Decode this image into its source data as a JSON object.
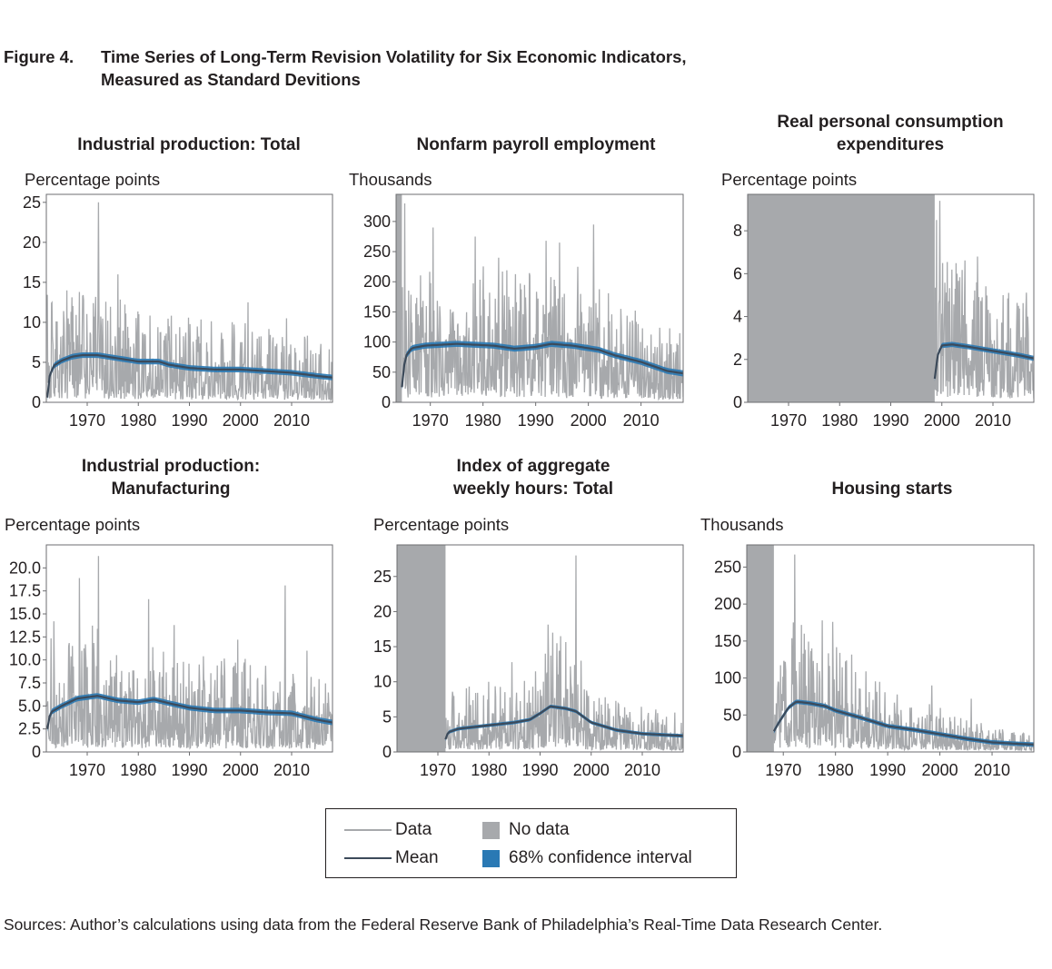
{
  "figure": {
    "number": "Figure 4.",
    "title_line1": "Time Series of Long-Term Revision Volatility for Six Economic Indicators,",
    "title_line2": "Measured as Standard Devitions"
  },
  "colors": {
    "data": "#a7a9ac",
    "mean": "#3c4a5a",
    "ci": "#2a79b4",
    "nodata": "#a7a9ac",
    "frame": "#6d6e71"
  },
  "chart_data": [
    {
      "type": "line",
      "title_lines": [
        "Industrial production: Total"
      ],
      "ylabel": "Percentage points",
      "xlim": [
        1962,
        2018
      ],
      "ylim": [
        0,
        26
      ],
      "yticks": [
        "0",
        "5",
        "10",
        "15",
        "20",
        "25"
      ],
      "ytick_values": [
        0,
        5,
        10,
        15,
        20,
        25
      ],
      "xticks": [
        "1970",
        "1980",
        "1990",
        "2000",
        "2010"
      ],
      "xtick_values": [
        1970,
        1980,
        1990,
        2000,
        2010
      ],
      "no_data": [],
      "data_start": 1962.2,
      "data_end": 2018,
      "series": [
        {
          "name": "Data",
          "style": "noisy",
          "base": [
            [
              1962,
              4.5
            ],
            [
              1970,
              4.8
            ],
            [
              1980,
              4.0
            ],
            [
              1990,
              3.6
            ],
            [
              2000,
              3.4
            ],
            [
              2010,
              2.9
            ],
            [
              2018,
              2.4
            ]
          ],
          "spikes": [
            [
              1972.2,
              25
            ],
            [
              1976,
              16
            ],
            [
              1966,
              14
            ],
            [
              1968.5,
              13.8
            ],
            [
              2001.5,
              12.5
            ],
            [
              2009,
              10.5
            ],
            [
              1986,
              9.5
            ],
            [
              1963,
              12.4
            ]
          ]
        },
        {
          "name": "Mean",
          "points": [
            [
              1962.2,
              0.6
            ],
            [
              1962.7,
              3.5
            ],
            [
              1963.5,
              4.6
            ],
            [
              1965,
              5.2
            ],
            [
              1967,
              5.7
            ],
            [
              1969,
              5.9
            ],
            [
              1972,
              5.9
            ],
            [
              1975,
              5.6
            ],
            [
              1980,
              5.1
            ],
            [
              1984,
              5.1
            ],
            [
              1986,
              4.7
            ],
            [
              1990,
              4.3
            ],
            [
              1995,
              4.1
            ],
            [
              2000,
              4.1
            ],
            [
              2005,
              3.9
            ],
            [
              2010,
              3.7
            ],
            [
              2015,
              3.3
            ],
            [
              2018,
              3.1
            ]
          ],
          "band": 0.35
        }
      ]
    },
    {
      "type": "line",
      "title_lines": [
        "Nonfarm payroll employment"
      ],
      "ylabel": "Thousands",
      "xlim": [
        1963.5,
        2018
      ],
      "ylim": [
        0,
        345
      ],
      "yticks": [
        "0",
        "50",
        "100",
        "150",
        "200",
        "250",
        "300"
      ],
      "ytick_values": [
        0,
        50,
        100,
        150,
        200,
        250,
        300
      ],
      "xticks": [
        "1970",
        "1980",
        "1990",
        "2000",
        "2010"
      ],
      "xtick_values": [
        1970,
        1980,
        1990,
        2000,
        2010
      ],
      "no_data": [
        [
          1963.5,
          1964.6
        ]
      ],
      "data_start": 1964.6,
      "data_end": 2018,
      "series": [
        {
          "name": "Data",
          "style": "noisy",
          "base": [
            [
              1964.6,
              80
            ],
            [
              1970,
              78
            ],
            [
              1980,
              76
            ],
            [
              1990,
              72
            ],
            [
              2000,
              68
            ],
            [
              2010,
              52
            ],
            [
              2018,
              40
            ]
          ],
          "spikes": [
            [
              1965.2,
              330
            ],
            [
              1970.5,
              290
            ],
            [
              1978.5,
              275
            ],
            [
              1992,
              268
            ],
            [
              1994.5,
              265
            ],
            [
              2001,
              295
            ],
            [
              1983,
              240
            ],
            [
              1998,
              225
            ]
          ]
        },
        {
          "name": "Mean",
          "points": [
            [
              1964.6,
              25
            ],
            [
              1965.2,
              75
            ],
            [
              1966.5,
              90
            ],
            [
              1969,
              94
            ],
            [
              1975,
              97
            ],
            [
              1982,
              94
            ],
            [
              1986,
              89
            ],
            [
              1990,
              92
            ],
            [
              1993,
              97
            ],
            [
              1997,
              94
            ],
            [
              2002,
              87
            ],
            [
              2005,
              78
            ],
            [
              2010,
              67
            ],
            [
              2015,
              52
            ],
            [
              2018,
              48
            ]
          ],
          "band": 5
        }
      ]
    },
    {
      "type": "line",
      "title_lines": [
        "Real personal consumption",
        "expenditures"
      ],
      "ylabel": "Percentage points",
      "xlim": [
        1962,
        2018
      ],
      "ylim": [
        0,
        9.7
      ],
      "yticks": [
        "0",
        "2",
        "4",
        "6",
        "8"
      ],
      "ytick_values": [
        0,
        2,
        4,
        6,
        8
      ],
      "xticks": [
        "1970",
        "1980",
        "1990",
        "2000",
        "2010"
      ],
      "xtick_values": [
        1970,
        1980,
        1990,
        2000,
        2010
      ],
      "no_data": [
        [
          1962,
          1998.6
        ]
      ],
      "data_start": 1998.6,
      "data_end": 2018,
      "series": [
        {
          "name": "Data",
          "style": "noisy",
          "base": [
            [
              1998.6,
              2.6
            ],
            [
              2005,
              2.3
            ],
            [
              2010,
              2.0
            ],
            [
              2018,
              1.7
            ]
          ],
          "spikes": [
            [
              1999.6,
              9.4
            ],
            [
              1999,
              8.5
            ],
            [
              2007,
              6.8
            ],
            [
              2012,
              5.0
            ],
            [
              2015,
              4.5
            ],
            [
              2003,
              6.0
            ]
          ]
        },
        {
          "name": "Mean",
          "points": [
            [
              1998.6,
              1.1
            ],
            [
              1999.2,
              2.2
            ],
            [
              2000,
              2.65
            ],
            [
              2002,
              2.7
            ],
            [
              2005,
              2.6
            ],
            [
              2010,
              2.4
            ],
            [
              2015,
              2.2
            ],
            [
              2018,
              2.05
            ]
          ],
          "band": 0.12
        }
      ]
    },
    {
      "type": "line",
      "title_lines": [
        "Industrial production:",
        "Manufacturing"
      ],
      "ylabel": "Percentage points",
      "xlim": [
        1962,
        2018
      ],
      "ylim": [
        0,
        22.5
      ],
      "yticks": [
        "0",
        "2.5",
        "5.0",
        "7.5",
        "10.0",
        "12.5",
        "15.0",
        "17.5",
        "20.0"
      ],
      "ytick_values": [
        0,
        2.5,
        5,
        7.5,
        10,
        12.5,
        15,
        17.5,
        20
      ],
      "xticks": [
        "1970",
        "1980",
        "1990",
        "2000",
        "2010"
      ],
      "xtick_values": [
        1970,
        1980,
        1990,
        2000,
        2010
      ],
      "no_data": [],
      "data_start": 1962.2,
      "data_end": 2018,
      "series": [
        {
          "name": "Data",
          "style": "noisy",
          "base": [
            [
              1962,
              4.2
            ],
            [
              1970,
              4.7
            ],
            [
              1980,
              4.2
            ],
            [
              1990,
              3.8
            ],
            [
              2000,
              3.6
            ],
            [
              2010,
              3.2
            ],
            [
              2018,
              2.6
            ]
          ],
          "spikes": [
            [
              1972.2,
              21.3
            ],
            [
              1968.5,
              18.9
            ],
            [
              2008.7,
              18.1
            ],
            [
              1982,
              16.6
            ],
            [
              1963.5,
              14.2
            ],
            [
              1987,
              13.8
            ],
            [
              1999.5,
              12.2
            ],
            [
              2013,
              11
            ]
          ]
        },
        {
          "name": "Mean",
          "points": [
            [
              1962.2,
              2.5
            ],
            [
              1962.8,
              4.3
            ],
            [
              1965,
              5.0
            ],
            [
              1968,
              5.8
            ],
            [
              1972,
              6.1
            ],
            [
              1976,
              5.6
            ],
            [
              1980,
              5.4
            ],
            [
              1983,
              5.7
            ],
            [
              1986,
              5.3
            ],
            [
              1990,
              4.8
            ],
            [
              1995,
              4.5
            ],
            [
              2000,
              4.5
            ],
            [
              2005,
              4.3
            ],
            [
              2010,
              4.2
            ],
            [
              2015,
              3.5
            ],
            [
              2018,
              3.2
            ]
          ],
          "band": 0.3
        }
      ]
    },
    {
      "type": "line",
      "title_lines": [
        "Index of aggregate",
        "weekly hours: Total"
      ],
      "ylabel": "Percentage points",
      "xlim": [
        1962,
        2018
      ],
      "ylim": [
        0,
        29.5
      ],
      "yticks": [
        "0",
        "5",
        "10",
        "15",
        "20",
        "25"
      ],
      "ytick_values": [
        0,
        5,
        10,
        15,
        20,
        25
      ],
      "xticks": [
        "1970",
        "1980",
        "1990",
        "2000",
        "2010"
      ],
      "xtick_values": [
        1970,
        1980,
        1990,
        2000,
        2010
      ],
      "no_data": [
        [
          1962,
          1971.5
        ]
      ],
      "data_start": 1971.5,
      "data_end": 2018,
      "series": [
        {
          "name": "Data",
          "style": "noisy",
          "base": [
            [
              1971.5,
              3.0
            ],
            [
              1980,
              3.2
            ],
            [
              1988,
              3.6
            ],
            [
              1992,
              6.5
            ],
            [
              1996,
              5.0
            ],
            [
              2000,
              3.0
            ],
            [
              2010,
              2.2
            ],
            [
              2018,
              1.8
            ]
          ],
          "spikes": [
            [
              1997,
              28
            ],
            [
              1992.5,
              17
            ],
            [
              1994,
              16.5
            ],
            [
              1984.5,
              12.8
            ],
            [
              1991,
              14
            ],
            [
              1998,
              13
            ],
            [
              1980,
              10
            ],
            [
              1973,
              8
            ]
          ]
        },
        {
          "name": "Mean",
          "points": [
            [
              1971.5,
              1.8
            ],
            [
              1972,
              2.8
            ],
            [
              1974,
              3.3
            ],
            [
              1980,
              3.8
            ],
            [
              1985,
              4.2
            ],
            [
              1988,
              4.6
            ],
            [
              1990,
              5.5
            ],
            [
              1992,
              6.5
            ],
            [
              1995,
              6.2
            ],
            [
              1997,
              5.8
            ],
            [
              2000,
              4.2
            ],
            [
              2005,
              3.1
            ],
            [
              2010,
              2.6
            ],
            [
              2015,
              2.4
            ],
            [
              2018,
              2.3
            ]
          ],
          "band": 0.25
        }
      ]
    },
    {
      "type": "line",
      "title_lines": [
        "Housing starts"
      ],
      "ylabel": "Thousands",
      "xlim": [
        1963,
        2018
      ],
      "ylim": [
        0,
        280
      ],
      "yticks": [
        "0",
        "50",
        "100",
        "150",
        "200",
        "250"
      ],
      "ytick_values": [
        0,
        50,
        100,
        150,
        200,
        250
      ],
      "xticks": [
        "1970",
        "1980",
        "1990",
        "2000",
        "2010"
      ],
      "xtick_values": [
        1970,
        1980,
        1990,
        2000,
        2010
      ],
      "no_data": [
        [
          1963,
          1968.2
        ]
      ],
      "data_start": 1968.2,
      "data_end": 2018,
      "series": [
        {
          "name": "Data",
          "style": "noisy",
          "base": [
            [
              1968.2,
              45
            ],
            [
              1972,
              60
            ],
            [
              1978,
              55
            ],
            [
              1985,
              40
            ],
            [
              1990,
              28
            ],
            [
              2000,
              22
            ],
            [
              2010,
              12
            ],
            [
              2018,
              8
            ]
          ],
          "spikes": [
            [
              1972.2,
              267
            ],
            [
              1977.5,
              178
            ],
            [
              1979.5,
              176
            ],
            [
              1974,
              160
            ],
            [
              1975.5,
              140
            ],
            [
              1998.5,
              90
            ],
            [
              2006,
              72
            ],
            [
              1969,
              95
            ]
          ]
        },
        {
          "name": "Mean",
          "points": [
            [
              1968.2,
              28
            ],
            [
              1969,
              38
            ],
            [
              1971,
              60
            ],
            [
              1972.5,
              68
            ],
            [
              1975,
              66
            ],
            [
              1978,
              62
            ],
            [
              1980,
              56
            ],
            [
              1985,
              46
            ],
            [
              1990,
              35
            ],
            [
              1995,
              30
            ],
            [
              2000,
              24
            ],
            [
              2005,
              18
            ],
            [
              2010,
              13
            ],
            [
              2015,
              11
            ],
            [
              2018,
              10
            ]
          ],
          "band": 3
        }
      ]
    }
  ],
  "legend": {
    "data_label": "Data",
    "nodata_label": "No data",
    "mean_label": "Mean",
    "ci_label": "68% confidence interval"
  },
  "sources": "Sources: Author’s calculations using data from the Federal Reserve Bank of Philadelphia’s Real-Time Data Research Center."
}
